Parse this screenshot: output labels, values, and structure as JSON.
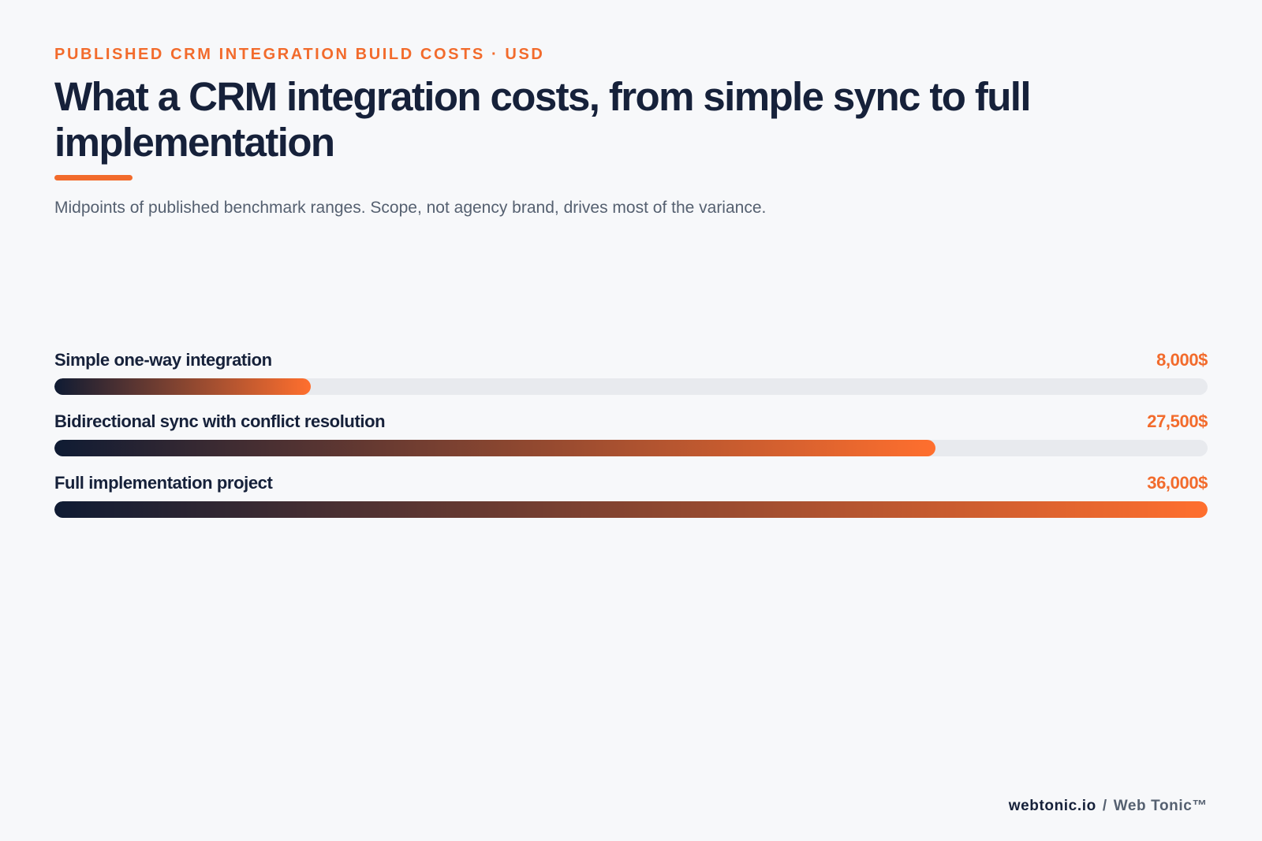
{
  "header": {
    "eyebrow": "PUBLISHED CRM INTEGRATION BUILD COSTS · USD",
    "title": "What a CRM integration costs, from simple sync to full implementation",
    "subtitle": "Midpoints of published benchmark ranges. Scope, not agency brand, drives most of the variance."
  },
  "chart_data": {
    "type": "bar",
    "orientation": "horizontal",
    "title": "What a CRM integration costs, from simple sync to full implementation",
    "categories": [
      "Simple one-way integration",
      "Bidirectional sync with conflict resolution",
      "Full implementation project"
    ],
    "values": [
      8000,
      27500,
      36000
    ],
    "value_labels": [
      "8,000$",
      "27,500$",
      "36,000$"
    ],
    "unit": "USD",
    "xlim": [
      0,
      36000
    ],
    "grid": false,
    "legend": "none"
  },
  "colors": {
    "accent": "#f26b2c",
    "accent_light": "#ff6f2e",
    "navy": "#0f1b33",
    "track": "#e8eaee"
  },
  "footer": {
    "domain": "webtonic.io",
    "separator": "/",
    "brand": "Web Tonic™"
  }
}
